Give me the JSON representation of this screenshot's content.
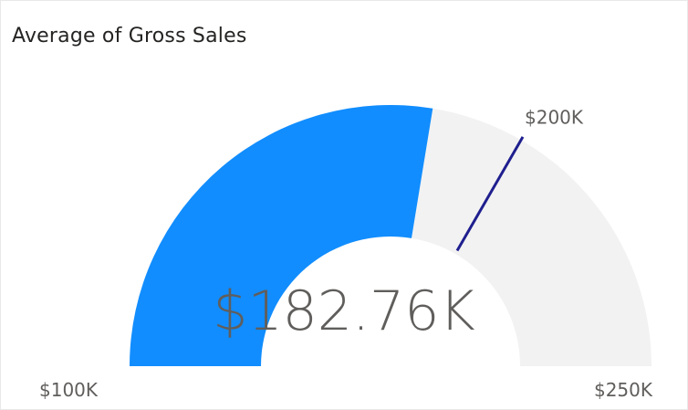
{
  "chart_data": {
    "type": "gauge",
    "title": "Average of Gross Sales",
    "min": 100000,
    "max": 250000,
    "value": 182760,
    "target": 200000,
    "min_label": "$100K",
    "max_label": "$250K",
    "target_label": "$200K",
    "value_label": "$182.76K",
    "colors": {
      "fill": "#118dff",
      "track": "#f2f2f2",
      "target": "#1f1f8f"
    }
  }
}
